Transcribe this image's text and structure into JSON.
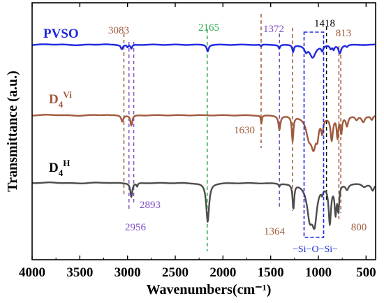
{
  "chart_data": {
    "type": "line",
    "xlabel": "Wavenumbers(cm⁻¹)",
    "ylabel": "Transmittance (a.u.)",
    "xlim": [
      4000,
      400
    ],
    "x_reversed": true,
    "x_ticks": [
      "4000",
      "3500",
      "3000",
      "2500",
      "2000",
      "1500",
      "1000",
      "500"
    ],
    "x_tick_values": [
      4000,
      3500,
      3000,
      2500,
      2000,
      1500,
      1000,
      500
    ],
    "y_ticks_shown": false,
    "grid": false,
    "series": [
      {
        "name": "PVSO",
        "color": "#1f28e0",
        "label_parts": {
          "base": "PVSO",
          "sub": "",
          "sup": ""
        },
        "baseline": 0.0,
        "wobble": 0.06,
        "peaks": [
          {
            "x": 3060,
            "depth": 0.7,
            "width": 12
          },
          {
            "x": 3000,
            "depth": 0.4,
            "width": 8
          },
          {
            "x": 2960,
            "depth": 0.65,
            "width": 10
          },
          {
            "x": 2160,
            "depth": 1.05,
            "width": 12
          },
          {
            "x": 1600,
            "depth": 0.3,
            "width": 6
          },
          {
            "x": 1410,
            "depth": 0.6,
            "width": 9
          },
          {
            "x": 1265,
            "depth": 1.1,
            "width": 9
          },
          {
            "x": 1130,
            "depth": 0.9,
            "width": 20
          },
          {
            "x": 1060,
            "depth": 2.0,
            "width": 38
          },
          {
            "x": 960,
            "depth": 0.8,
            "width": 12
          },
          {
            "x": 870,
            "depth": 0.6,
            "width": 12
          },
          {
            "x": 840,
            "depth": 0.7,
            "width": 10
          },
          {
            "x": 775,
            "depth": 1.3,
            "width": 16
          },
          {
            "x": 700,
            "depth": 0.3,
            "width": 10
          }
        ]
      },
      {
        "name": "D4Vi",
        "color": "#a05a3c",
        "label_parts": {
          "base": "D",
          "sub": "4",
          "sup": "Vi"
        },
        "baseline": 0.0,
        "wobble": 0.05,
        "peaks": [
          {
            "x": 3055,
            "depth": 0.9,
            "width": 12
          },
          {
            "x": 2960,
            "depth": 1.5,
            "width": 12
          },
          {
            "x": 1597,
            "depth": 1.2,
            "width": 6
          },
          {
            "x": 1408,
            "depth": 2.0,
            "width": 12
          },
          {
            "x": 1270,
            "depth": 3.6,
            "width": 10
          },
          {
            "x": 1100,
            "depth": 2.6,
            "width": 35
          },
          {
            "x": 1050,
            "depth": 4.0,
            "width": 32
          },
          {
            "x": 1010,
            "depth": 2.0,
            "width": 15
          },
          {
            "x": 960,
            "depth": 2.0,
            "width": 12
          },
          {
            "x": 860,
            "depth": 3.4,
            "width": 15
          },
          {
            "x": 800,
            "depth": 3.0,
            "width": 10
          },
          {
            "x": 760,
            "depth": 2.4,
            "width": 10
          },
          {
            "x": 700,
            "depth": 1.4,
            "width": 14
          },
          {
            "x": 600,
            "depth": 0.6,
            "width": 18
          },
          {
            "x": 530,
            "depth": 0.9,
            "width": 20
          },
          {
            "x": 440,
            "depth": 0.6,
            "width": 14
          }
        ]
      },
      {
        "name": "D4H",
        "color": "#4d4d4d",
        "label_parts": {
          "base": "D",
          "sub": "4",
          "sup": "H"
        },
        "baseline": 0.0,
        "wobble": 0.05,
        "peaks": [
          {
            "x": 2960,
            "depth": 2.0,
            "width": 12
          },
          {
            "x": 2900,
            "depth": 0.5,
            "width": 8
          },
          {
            "x": 2160,
            "depth": 5.6,
            "width": 18
          },
          {
            "x": 1410,
            "depth": 0.4,
            "width": 8
          },
          {
            "x": 1262,
            "depth": 3.6,
            "width": 10
          },
          {
            "x": 1090,
            "depth": 4.5,
            "width": 35
          },
          {
            "x": 1040,
            "depth": 5.0,
            "width": 30
          },
          {
            "x": 960,
            "depth": 0.8,
            "width": 10
          },
          {
            "x": 880,
            "depth": 5.5,
            "width": 15
          },
          {
            "x": 820,
            "depth": 4.0,
            "width": 12
          },
          {
            "x": 790,
            "depth": 3.6,
            "width": 10
          },
          {
            "x": 700,
            "depth": 0.8,
            "width": 18
          },
          {
            "x": 520,
            "depth": 0.5,
            "width": 30
          },
          {
            "x": 430,
            "depth": 1.0,
            "width": 20
          }
        ]
      }
    ],
    "reference_lines": [
      {
        "x": 3083,
        "color": "#a05a3c",
        "label": "3083"
      },
      {
        "x": 2956,
        "color": "#7d4fc4",
        "label": "2956"
      },
      {
        "x": 2893,
        "color": "#7d4fc4",
        "label": "2893"
      },
      {
        "x": 2165,
        "color": "#2ea84a",
        "label": "2165"
      },
      {
        "x": 1630,
        "color": "#a05a3c",
        "label": "1630"
      },
      {
        "x": 1372,
        "color": "#7d4fc4",
        "label": "1372"
      },
      {
        "x": 1364,
        "color": "#a05a3c",
        "label": "1364"
      },
      {
        "x": 1418,
        "color": "#000000",
        "label": "1418"
      },
      {
        "x": 813,
        "color": "#a05a3c",
        "label": "813"
      },
      {
        "x": 800,
        "color": "#a05a3c",
        "label": "800"
      }
    ],
    "highlight_box": {
      "x_from": 1150,
      "x_to": 945,
      "color": "#1f28e0",
      "label": "−Si−O−Si−"
    }
  }
}
